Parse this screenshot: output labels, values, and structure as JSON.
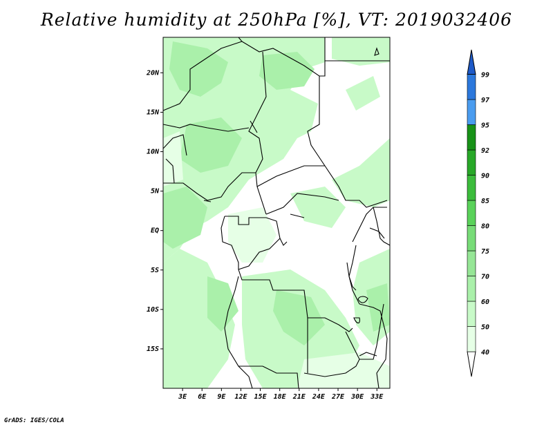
{
  "title": "Relative humidity at 250hPa [%], VT: 2019032406",
  "credit": "GrADS: IGES/COLA",
  "map": {
    "lat_labels": [
      "20N",
      "15N",
      "10N",
      "5N",
      "EQ",
      "5S",
      "10S",
      "15S"
    ],
    "lat_values": [
      20,
      15,
      10,
      5,
      0,
      -5,
      -10,
      -15
    ],
    "lon_labels": [
      "3E",
      "6E",
      "9E",
      "12E",
      "15E",
      "18E",
      "21E",
      "24E",
      "27E",
      "30E",
      "33E"
    ],
    "lon_values": [
      3,
      6,
      9,
      12,
      15,
      18,
      21,
      24,
      27,
      30,
      33
    ],
    "lat_range": [
      -20,
      24.5
    ],
    "lon_range": [
      0,
      35
    ],
    "field": "Relative humidity",
    "level": "250hPa",
    "units": "%",
    "valid_time": "2019032406"
  },
  "colorbar": {
    "levels": [
      "40",
      "50",
      "60",
      "70",
      "75",
      "80",
      "85",
      "90",
      "92",
      "95",
      "97",
      "99"
    ],
    "colors": [
      "#ffffff",
      "#e6ffe6",
      "#c8fac8",
      "#aaf0aa",
      "#96e696",
      "#78dc78",
      "#5ad25a",
      "#3cbc3c",
      "#28a828",
      "#189218",
      "#4a9cef",
      "#2c78dc",
      "#1e5ac8"
    ]
  }
}
